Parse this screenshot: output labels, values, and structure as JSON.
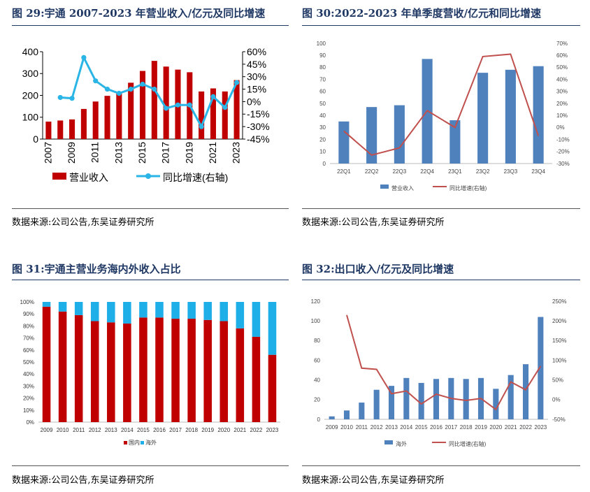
{
  "charts": [
    {
      "title": "图 29:宇通 2007-2023 年营业收入/亿元及同比增速",
      "source": "数据来源:公司公告,东吴证券研究所",
      "chart_data": {
        "type": "bar+line",
        "categories": [
          "2007",
          "2008",
          "2009",
          "2010",
          "2011",
          "2012",
          "2013",
          "2014",
          "2015",
          "2016",
          "2017",
          "2018",
          "2019",
          "2020",
          "2021",
          "2022",
          "2023"
        ],
        "x_tick_labels": [
          "2007",
          "2009",
          "2011",
          "2013",
          "2015",
          "2017",
          "2019",
          "2021",
          "2023"
        ],
        "series": [
          {
            "name": "营业收入",
            "axis": "left",
            "type": "bar",
            "color": "#c00000",
            "values": [
              80,
              85,
              90,
              138,
              172,
              198,
              216,
              258,
              312,
              358,
              332,
              318,
              306,
              218,
              232,
              218,
              270
            ]
          },
          {
            "name": "同比增速(右轴)",
            "axis": "right",
            "type": "line",
            "color": "#2ab5e6",
            "values": [
              null,
              5,
              4,
              53,
              25,
              15,
              10,
              15,
              21,
              15,
              -8,
              -4,
              -4,
              -30,
              6,
              -7,
              23
            ]
          }
        ],
        "ylim": [
          0,
          400
        ],
        "yticks": [
          "0",
          "100",
          "200",
          "300",
          "400"
        ],
        "y2lim": [
          -45,
          60
        ],
        "y2ticks": [
          "-45%",
          "-30%",
          "-15%",
          "0%",
          "15%",
          "30%",
          "45%",
          "60%"
        ],
        "legend": [
          "营业收入",
          "同比增速(右轴)"
        ]
      }
    },
    {
      "title": "图 30:2022-2023 年单季度营收/亿元和同比增速",
      "source": "数据来源:公司公告,东吴证券研究所",
      "chart_data": {
        "type": "bar+line",
        "categories": [
          "22Q1",
          "22Q2",
          "22Q3",
          "22Q4",
          "23Q1",
          "23Q2",
          "23Q3",
          "23Q4"
        ],
        "series": [
          {
            "name": "营业收入",
            "axis": "left",
            "type": "bar",
            "color": "#4f81bd",
            "values": [
              35,
              47,
              48.5,
              87,
              36,
              75.5,
              78,
              81
            ]
          },
          {
            "name": "同比增速(右轴)",
            "axis": "right",
            "type": "line",
            "color": "#c0504d",
            "values": [
              -3,
              -23,
              -17,
              14,
              0,
              59,
              61,
              -7
            ]
          }
        ],
        "ylim": [
          0,
          100
        ],
        "yticks": [
          "0",
          "10",
          "20",
          "30",
          "40",
          "50",
          "60",
          "70",
          "80",
          "90",
          "100"
        ],
        "y2lim": [
          -30,
          70
        ],
        "y2ticks": [
          "-30%",
          "-20%",
          "-10%",
          "0%",
          "10%",
          "20%",
          "30%",
          "40%",
          "50%",
          "60%",
          "70%"
        ],
        "legend": [
          "营业收入",
          "同比增速(右轴)"
        ]
      }
    },
    {
      "title": "图 31:宇通主营业务海内外收入占比",
      "source": "数据来源:公司公告,东吴证券研究所",
      "chart_data": {
        "type": "stacked-bar-100",
        "categories": [
          "2009",
          "2010",
          "2011",
          "2012",
          "2013",
          "2014",
          "2015",
          "2016",
          "2017",
          "2018",
          "2019",
          "2020",
          "2021",
          "2022",
          "2023"
        ],
        "series": [
          {
            "name": "国内",
            "color": "#c00000",
            "values": [
              96,
              92,
              89,
              84,
              83,
              82,
              87,
              87,
              86,
              86,
              85,
              84,
              78,
              71,
              56
            ]
          },
          {
            "name": "海外",
            "color": "#1eaee8",
            "values": [
              4,
              8,
              11,
              16,
              17,
              18,
              13,
              13,
              14,
              14,
              15,
              16,
              22,
              29,
              44
            ]
          }
        ],
        "ylim": [
          0,
          100
        ],
        "yticks": [
          "0%",
          "10%",
          "20%",
          "30%",
          "40%",
          "50%",
          "60%",
          "70%",
          "80%",
          "90%",
          "100%"
        ],
        "legend": [
          "国内",
          "海外"
        ]
      }
    },
    {
      "title": "图 32:出口收入/亿元及同比增速",
      "source": "数据来源:公司公告,东吴证券研究所",
      "chart_data": {
        "type": "bar+line",
        "categories": [
          "2009",
          "2010",
          "2011",
          "2012",
          "2013",
          "2014",
          "2015",
          "2016",
          "2017",
          "2018",
          "2019",
          "2020",
          "2021",
          "2022",
          "2023"
        ],
        "series": [
          {
            "name": "海外",
            "axis": "left",
            "type": "bar",
            "color": "#4f81bd",
            "values": [
              3,
              9,
              17,
              30,
              34,
              42,
              37,
              41,
              42,
              41,
              42,
              31,
              45,
              56,
              104
            ]
          },
          {
            "name": "同比增速(右轴)",
            "axis": "right",
            "type": "line",
            "color": "#c0504d",
            "values": [
              null,
              215,
              80,
              77,
              15,
              22,
              -11,
              14,
              3,
              -2,
              3,
              -25,
              45,
              25,
              85
            ]
          }
        ],
        "ylim": [
          0,
          120
        ],
        "yticks": [
          "0",
          "20",
          "40",
          "60",
          "80",
          "100",
          "120"
        ],
        "y2lim": [
          -50,
          250
        ],
        "y2ticks": [
          "-50%",
          "0%",
          "50%",
          "100%",
          "150%",
          "200%",
          "250%"
        ],
        "legend": [
          "海外",
          "同比增速(右轴)"
        ]
      }
    }
  ]
}
